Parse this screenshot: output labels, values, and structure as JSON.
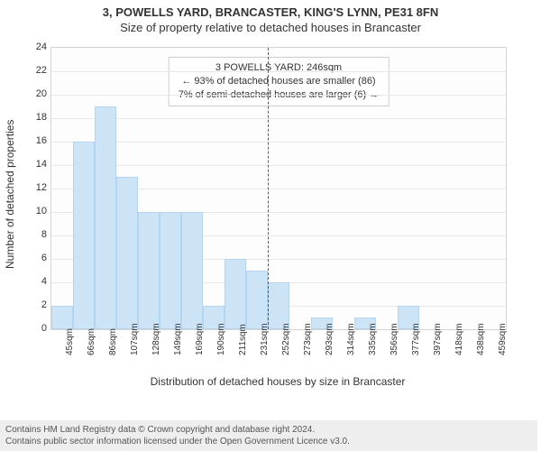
{
  "titles": {
    "line1": "3, POWELLS YARD, BRANCASTER, KING'S LYNN, PE31 8FN",
    "line2": "Size of property relative to detached houses in Brancaster"
  },
  "axes": {
    "ylabel": "Number of detached properties",
    "xlabel": "Distribution of detached houses by size in Brancaster",
    "ylim": [
      0,
      24
    ],
    "ytick_step": 2,
    "grid_color": "#e8e8e8",
    "border_color": "#d4d4d4",
    "tick_fontsize": 11
  },
  "bars": {
    "labels": [
      "45sqm",
      "66sqm",
      "86sqm",
      "107sqm",
      "128sqm",
      "149sqm",
      "169sqm",
      "190sqm",
      "211sqm",
      "231sqm",
      "252sqm",
      "273sqm",
      "293sqm",
      "314sqm",
      "335sqm",
      "356sqm",
      "377sqm",
      "397sqm",
      "418sqm",
      "438sqm",
      "459sqm"
    ],
    "values": [
      2,
      16,
      19,
      13,
      10,
      10,
      10,
      2,
      6,
      5,
      4,
      0,
      1,
      0,
      1,
      0,
      2,
      0,
      0,
      0,
      0
    ],
    "fill_color": "#cde3f6",
    "edge_color": "#b5d4ef",
    "bar_rel_width": 1.0
  },
  "subject": {
    "position_index": 10,
    "line_color": "#d22",
    "lines": {
      "a": "3 POWELLS YARD: 246sqm",
      "b": "← 93% of detached houses are smaller (86)",
      "c": "7% of semi-detached houses are larger (6) →"
    }
  },
  "footer": {
    "line1": "Contains HM Land Registry data © Crown copyright and database right 2024.",
    "line2": "Contains public sector information licensed under the Open Government Licence v3.0."
  }
}
